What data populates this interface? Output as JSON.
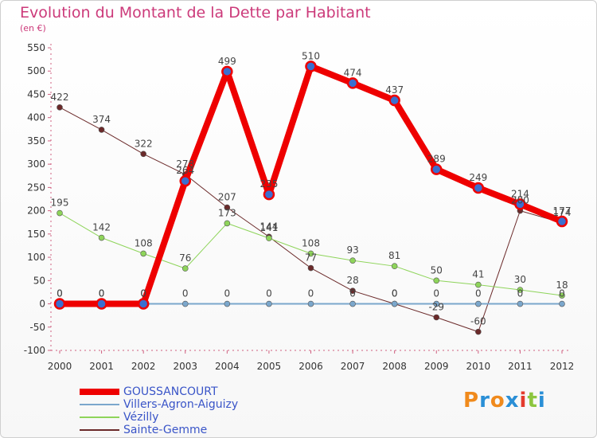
{
  "title": "Evolution du Montant de la Dette par Habitant",
  "subtitle": "(en €)",
  "logo": {
    "letters": [
      "P",
      "r",
      "o",
      "x",
      "i",
      "t",
      "i"
    ],
    "colors": [
      "#f08a1c",
      "#2a8fd6",
      "#f08a1c",
      "#2a8fd6",
      "#e43b2d",
      "#8cc63f",
      "#2a8fd6"
    ]
  },
  "chart_data": {
    "type": "line",
    "x": [
      "2000",
      "2001",
      "2002",
      "2003",
      "2004",
      "2005",
      "2006",
      "2007",
      "2008",
      "2009",
      "2010",
      "2011",
      "2012"
    ],
    "ylim": [
      -100,
      550
    ],
    "yticks": [
      -100,
      -50,
      0,
      50,
      100,
      150,
      200,
      250,
      300,
      350,
      400,
      450,
      500,
      550
    ],
    "grid": false,
    "legend_position": "bottom-left",
    "series": [
      {
        "name": "Sainte-Gemme",
        "color": "#6b2a2a",
        "width": 1,
        "values": [
          422,
          374,
          322,
          278,
          207,
          144,
          77,
          28,
          0,
          -29,
          -60,
          200,
          174
        ],
        "labels": [
          "422",
          "374",
          "322",
          "278",
          "207",
          "144",
          "77",
          "28",
          "0",
          "-29",
          "-60",
          "200",
          "174"
        ]
      },
      {
        "name": "Vézilly",
        "color": "#8ed45a",
        "width": 1,
        "values": [
          195,
          142,
          108,
          76,
          173,
          141,
          108,
          93,
          81,
          50,
          41,
          30,
          18
        ],
        "labels": [
          "195",
          "142",
          "108",
          "76",
          "173",
          "141",
          "108",
          "93",
          "81",
          "50",
          "41",
          "30",
          "18"
        ]
      },
      {
        "name": "Villers-Agron-Aiguizy",
        "color": "#7ba7cc",
        "width": 2,
        "values": [
          0,
          0,
          0,
          0,
          0,
          0,
          0,
          0,
          0,
          0,
          0,
          0,
          0
        ],
        "labels": [
          "0",
          "0",
          "0",
          "0",
          "0",
          "0",
          "0",
          "0",
          "0",
          "0",
          "0",
          "0",
          "0"
        ]
      },
      {
        "name": "GOUSSANCOURT",
        "color": "#ee0000",
        "width": 8,
        "values": [
          0,
          0,
          0,
          264,
          499,
          235,
          510,
          474,
          437,
          289,
          249,
          214,
          177
        ],
        "labels": [
          "0",
          "0",
          "0",
          "264",
          "499",
          "235",
          "510",
          "474",
          "437",
          "289",
          "249",
          "214",
          "177"
        ]
      }
    ],
    "legend_order": [
      "GOUSSANCOURT",
      "Villers-Agron-Aiguizy",
      "Vézilly",
      "Sainte-Gemme"
    ]
  }
}
